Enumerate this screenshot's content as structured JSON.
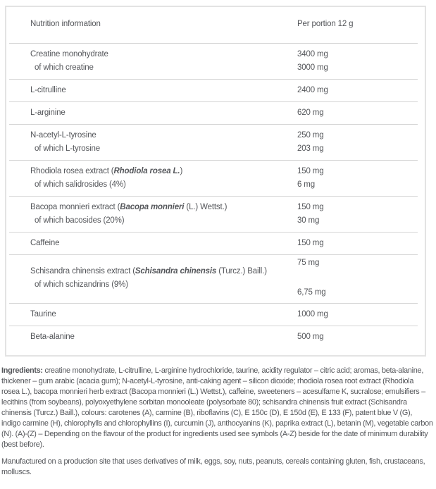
{
  "colors": {
    "text": "#54565a",
    "divider": "#d5d5d5",
    "border": "#e3e3e3",
    "background": "#ffffff"
  },
  "table": {
    "header": {
      "label": "Nutrition information",
      "value": "Per portion 12 g"
    },
    "groups": [
      {
        "rows": [
          {
            "parts": [
              {
                "t": "Creatine monohydrate"
              }
            ],
            "value": "3400 mg"
          },
          {
            "parts": [
              {
                "t": "of which creatine"
              }
            ],
            "sub": true,
            "value": "3000 mg"
          }
        ]
      },
      {
        "rows": [
          {
            "parts": [
              {
                "t": "L-citrulline"
              }
            ],
            "value": "2400 mg"
          }
        ]
      },
      {
        "rows": [
          {
            "parts": [
              {
                "t": "L-arginine"
              }
            ],
            "value": "620 mg"
          }
        ]
      },
      {
        "rows": [
          {
            "parts": [
              {
                "t": "N-acetyl-L-tyrosine"
              }
            ],
            "value": "250 mg"
          },
          {
            "parts": [
              {
                "t": "of which L-tyrosine"
              }
            ],
            "sub": true,
            "value": "203 mg"
          }
        ]
      },
      {
        "rows": [
          {
            "parts": [
              {
                "t": "Rhodiola rosea extract ("
              },
              {
                "t": "Rhodiola rosea L.",
                "em": true
              },
              {
                "t": ")"
              }
            ],
            "value": "150 mg"
          },
          {
            "parts": [
              {
                "t": "of which salidrosides (4%)"
              }
            ],
            "sub": true,
            "value": "6 mg"
          }
        ]
      },
      {
        "rows": [
          {
            "parts": [
              {
                "t": "Bacopa monnieri extract ("
              },
              {
                "t": "Bacopa monnieri",
                "em": true
              },
              {
                "t": " (L.) Wettst.)"
              }
            ],
            "value": "150 mg"
          },
          {
            "parts": [
              {
                "t": "of which bacosides (20%)"
              }
            ],
            "sub": true,
            "value": "30 mg"
          }
        ]
      },
      {
        "rows": [
          {
            "parts": [
              {
                "t": "Caffeine"
              }
            ],
            "value": "150 mg"
          }
        ]
      },
      {
        "spread": true,
        "rows": [
          {
            "parts": [
              {
                "t": "Schisandra chinensis extract ("
              },
              {
                "t": "Schisandra chinensis",
                "em": true
              },
              {
                "t": " (Turcz.) Baill.)"
              }
            ],
            "value": "75 mg"
          },
          {
            "parts": [
              {
                "t": "of which schizandrins (9%)"
              }
            ],
            "sub": true,
            "value": "6,75 mg"
          }
        ]
      },
      {
        "rows": [
          {
            "parts": [
              {
                "t": "Taurine"
              }
            ],
            "value": "1000 mg"
          }
        ]
      },
      {
        "rows": [
          {
            "parts": [
              {
                "t": "Beta-alanine"
              }
            ],
            "value": "500 mg"
          }
        ]
      }
    ]
  },
  "ingredients": {
    "label": "Ingredients:",
    "text": " creatine monohydrate, L-citrulline, L-arginine hydrochloride, taurine, acidity regulator – citric acid; aromas, beta-alanine, thickener – gum arabic (acacia gum); N-acetyl-L-tyrosine, anti-caking agent – silicon dioxide; rhodiola rosea root extract (Rhodiola rosea L.), bacopa monnieri herb extract (Bacopa monnieri (L.) Wettst.), caffeine, sweeteners – acesulfame K, sucralose; emulsifiers – lecithins (from soybeans), polyoxyethylene sorbitan monooleate (polysorbate 80); schisandra chinensis fruit extract (Schisandra chinensis (Turcz.) Baill.), colours: carotenes (A), carmine (B), riboflavins (C), E 150c (D), E 150d (E), E 133 (F), patent blue V (G), indigo carmine (H), chlorophylls and chlorophyllins (I), curcumin (J), anthocyanins (K), paprika extract (L), betanin (M), vegetable carbon (N). (A)-(Z) – Depending on the flavour of the product for ingredients used see symbols (A-Z) beside for the date of minimum durability (best before)."
  },
  "allergen_notice": "Manufactured on a production site that uses derivatives of milk, eggs, soy, nuts, peanuts, cereals containing gluten, fish, crustaceans, molluscs."
}
